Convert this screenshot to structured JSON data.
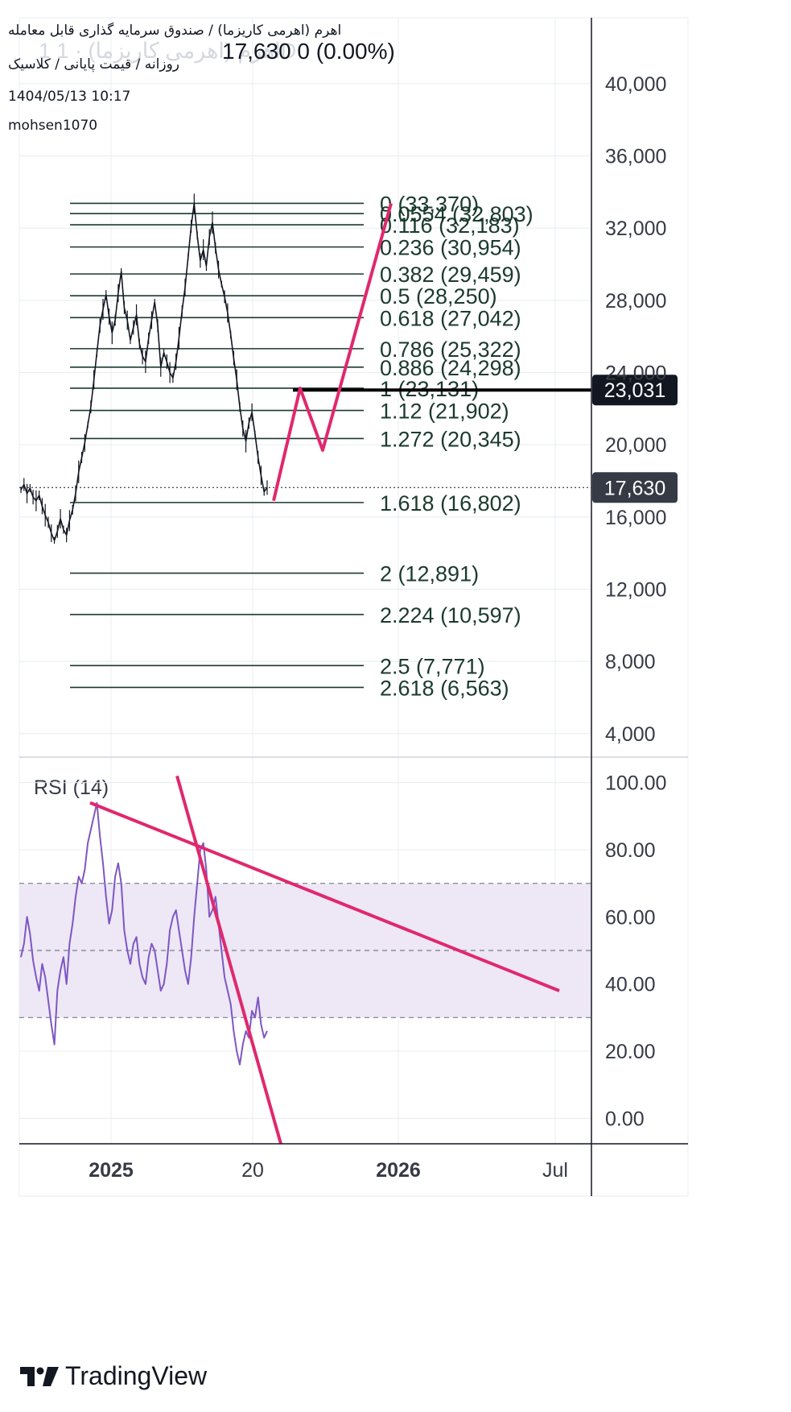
{
  "header": {
    "symbol_line": "اهرم (اهرمی کاریزما) / صندوق سرمایه گذاری قابل معامله",
    "interval_line": "روزانه / قیمت پایانی / کلاسیک",
    "datetime": "1404/05/13 10:17",
    "author": "mohsen1070",
    "ghost_symbol": "1 اهرم (اهرمی کاریزما) · 1D",
    "price_readout": "17,630  0 (0.00%)"
  },
  "brand": {
    "name": "TradingView"
  },
  "colors": {
    "grid": "#e8ecf0",
    "text": "#131722",
    "fib": "#1b3a2e",
    "annotation": "#e0286e",
    "rsi_line": "#7e57c2",
    "rsi_band": "#ede7f6",
    "label_dark": "#131722",
    "label_gray": "#363a45"
  },
  "chart_data": [
    {
      "type": "line",
      "title": "",
      "price_axis": {
        "ylim": [
          2700,
          43650
        ],
        "ticks": [
          4000,
          8000,
          12000,
          16000,
          20000,
          24000,
          28000,
          32000,
          36000,
          40000
        ],
        "tick_labels": [
          "4,000",
          "8,000",
          "12,000",
          "16,000",
          "20,000",
          "24,000",
          "28,000",
          "32,000",
          "36,000",
          "40,000"
        ]
      },
      "time_axis": {
        "tick_labels": [
          "2025",
          "20",
          "2026",
          "Jul"
        ],
        "bold": [
          true,
          false,
          true,
          false
        ]
      },
      "current_price": {
        "value": 17630,
        "label": "17,630"
      },
      "horizontal_line": {
        "value": 23031,
        "label": "23,031"
      },
      "fibonacci": [
        {
          "level": "0",
          "price": 33370,
          "label": "0 (33,370)"
        },
        {
          "level": "0.0554",
          "price": 32803,
          "label": "0.0554 (32,803)"
        },
        {
          "level": "0.116",
          "price": 32183,
          "label": "0.116 (32,183)"
        },
        {
          "level": "0.236",
          "price": 30954,
          "label": "0.236 (30,954)"
        },
        {
          "level": "0.382",
          "price": 29459,
          "label": "0.382 (29,459)"
        },
        {
          "level": "0.5",
          "price": 28250,
          "label": "0.5 (28,250)"
        },
        {
          "level": "0.618",
          "price": 27042,
          "label": "0.618 (27,042)"
        },
        {
          "level": "0.786",
          "price": 25322,
          "label": "0.786 (25,322)"
        },
        {
          "level": "0.886",
          "price": 24298,
          "label": "0.886 (24,298)"
        },
        {
          "level": "1",
          "price": 23131,
          "label": "1 (23,131)"
        },
        {
          "level": "1.12",
          "price": 21902,
          "label": "1.12 (21,902)"
        },
        {
          "level": "1.272",
          "price": 20345,
          "label": "1.272 (20,345)"
        },
        {
          "level": "1.618",
          "price": 16802,
          "label": "1.618 (16,802)"
        },
        {
          "level": "2",
          "price": 12891,
          "label": "2 (12,891)"
        },
        {
          "level": "2.224",
          "price": 10597,
          "label": "2.224 (10,597)"
        },
        {
          "level": "2.5",
          "price": 7771,
          "label": "2.5 (7,771)"
        },
        {
          "level": "2.618",
          "price": 6563,
          "label": "2.618 (6,563)"
        }
      ],
      "price_series": {
        "values": [
          17500,
          17800,
          17300,
          17600,
          17100,
          16900,
          17200,
          16600,
          16100,
          15700,
          15100,
          14700,
          15200,
          15900,
          15300,
          15000,
          15800,
          16400,
          17300,
          18500,
          19300,
          20100,
          21100,
          22100,
          23600,
          25100,
          26600,
          27500,
          28300,
          27100,
          26200,
          26900,
          28400,
          29600,
          27600,
          26900,
          25800,
          26500,
          27200,
          25600,
          24900,
          24600,
          25900,
          26900,
          27900,
          26600,
          24300,
          25100,
          24600,
          24000,
          23700,
          24600,
          25900,
          27400,
          28700,
          30400,
          32100,
          33370,
          31600,
          30200,
          30800,
          29900,
          31500,
          32300,
          30900,
          29700,
          28900,
          28200,
          27300,
          26100,
          24800,
          23600,
          22100,
          20900,
          20200,
          21200,
          21800,
          20600,
          19300,
          18300,
          17400,
          17630
        ],
        "ohlc_note": ""
      },
      "projection_path": [
        16900,
        23131,
        19700,
        33370
      ]
    },
    {
      "type": "line",
      "title": "RSI (14)",
      "ylim": [
        -7.6,
        107.6
      ],
      "ticks": [
        0,
        20,
        40,
        60,
        80,
        100
      ],
      "tick_labels": [
        "0.00",
        "20.00",
        "40.00",
        "60.00",
        "80.00",
        "100.00"
      ],
      "band": [
        30,
        70
      ],
      "midline": 50,
      "series": {
        "values": [
          48,
          52,
          60,
          55,
          47,
          42,
          38,
          46,
          42,
          35,
          28,
          22,
          38,
          44,
          48,
          40,
          52,
          58,
          66,
          72,
          70,
          74,
          82,
          86,
          90,
          94,
          84,
          76,
          66,
          58,
          62,
          72,
          76,
          70,
          56,
          50,
          46,
          52,
          54,
          46,
          42,
          40,
          48,
          52,
          50,
          44,
          38,
          40,
          46,
          56,
          60,
          62,
          56,
          50,
          44,
          40,
          48,
          60,
          70,
          80,
          82,
          74,
          60,
          62,
          66,
          58,
          50,
          42,
          38,
          34,
          26,
          20,
          16,
          22,
          26,
          24,
          32,
          30,
          36,
          28,
          24,
          26
        ]
      },
      "trendlines": "two annotation lines"
    }
  ]
}
